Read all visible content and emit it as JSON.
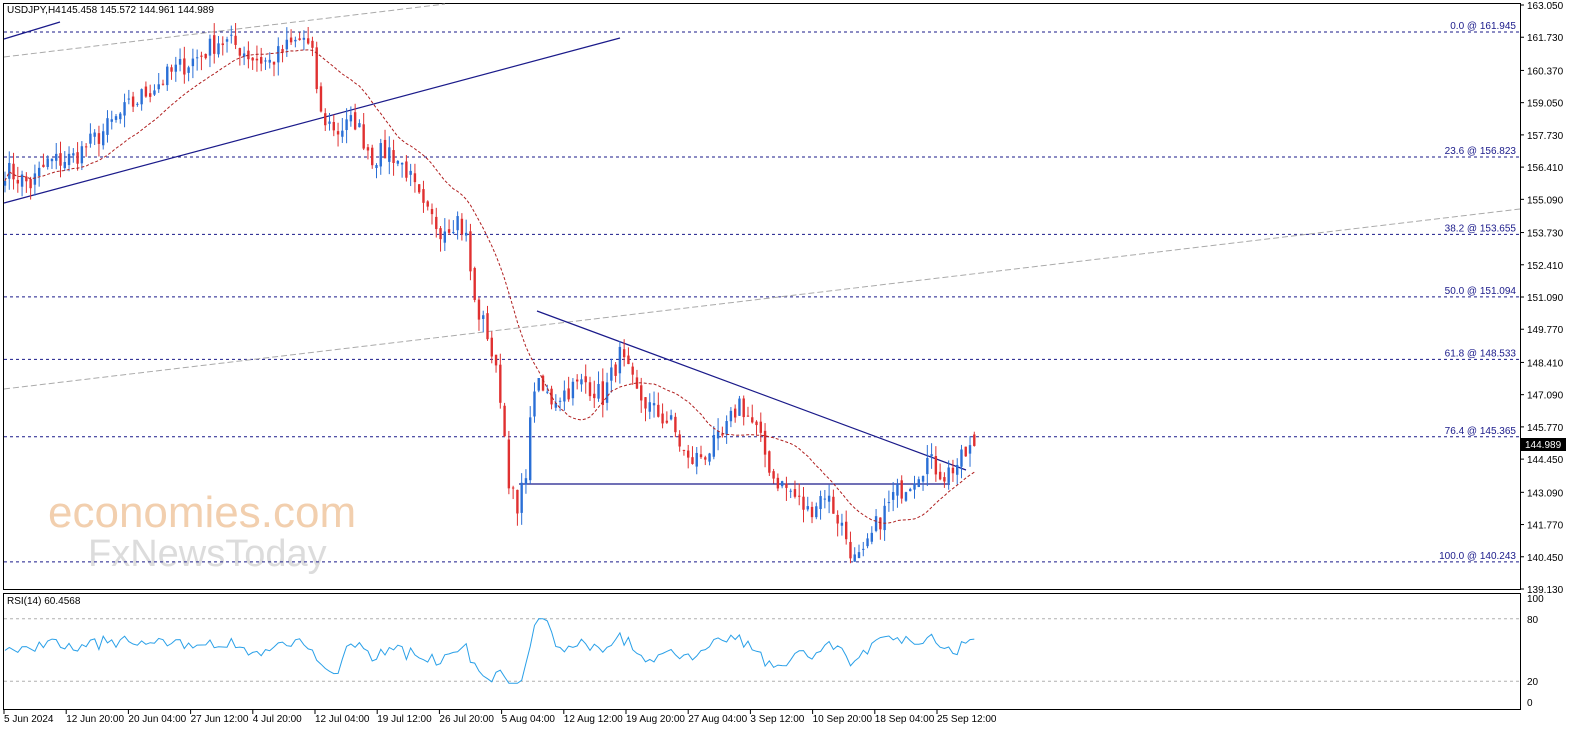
{
  "header": {
    "symbol": "USDJPY,H4",
    "ohlc": "145.458 145.572 144.961 144.989"
  },
  "price_axis": {
    "ticks": [
      "163.050",
      "161.730",
      "160.370",
      "159.050",
      "157.730",
      "156.410",
      "155.090",
      "153.730",
      "152.410",
      "151.090",
      "149.770",
      "148.410",
      "147.090",
      "145.770",
      "144.450",
      "143.090",
      "141.770",
      "140.450",
      "139.130"
    ],
    "current_price": "144.989"
  },
  "fibonacci": [
    {
      "label": "0.0 @ 161.945",
      "price": 161.945
    },
    {
      "label": "23.6 @ 156.823",
      "price": 156.823
    },
    {
      "label": "38.2 @ 153.655",
      "price": 153.655
    },
    {
      "label": "50.0 @ 151.094",
      "price": 151.094
    },
    {
      "label": "61.8 @ 148.533",
      "price": 148.533
    },
    {
      "label": "76.4 @ 145.365",
      "price": 145.365
    },
    {
      "label": "100.0 @ 140.243",
      "price": 140.243
    }
  ],
  "rsi": {
    "label": "RSI(14) 60.4568",
    "ticks": [
      "100",
      "80",
      "20",
      "0"
    ],
    "levels": [
      80,
      20
    ]
  },
  "time_axis": {
    "ticks": [
      "5 Jun 2024",
      "12 Jun 20:00",
      "20 Jun 04:00",
      "27 Jun 12:00",
      "4 Jul 20:00",
      "12 Jul 04:00",
      "19 Jul 12:00",
      "26 Jul 20:00",
      "5 Aug 04:00",
      "12 Aug 12:00",
      "19 Aug 20:00",
      "27 Aug 04:00",
      "3 Sep 12:00",
      "10 Sep 20:00",
      "18 Sep 04:00",
      "25 Sep 12:00"
    ]
  },
  "watermark": {
    "line1": "economies.com",
    "line2": "FxNewsToday"
  },
  "colors": {
    "bull": "#2a6fd6",
    "bear": "#e03030",
    "ma": "#b02020",
    "trend": "#1a1a8a",
    "rsi": "#2aa0e8",
    "grid_dash": "#1a1a8a"
  },
  "chart_data": {
    "type": "candlestick",
    "symbol": "USDJPY",
    "timeframe": "H4",
    "ylim": [
      139.13,
      163.05
    ],
    "x_labels": [
      "5 Jun 2024",
      "12 Jun 20:00",
      "20 Jun 04:00",
      "27 Jun 12:00",
      "4 Jul 20:00",
      "12 Jul 04:00",
      "19 Jul 12:00",
      "26 Jul 20:00",
      "5 Aug 04:00",
      "12 Aug 12:00",
      "19 Aug 20:00",
      "27 Aug 04:00",
      "3 Sep 12:00",
      "10 Sep 20:00",
      "18 Sep 04:00",
      "25 Sep 12:00"
    ],
    "price_path_keypoints": [
      [
        0,
        156.3
      ],
      [
        6,
        155.7
      ],
      [
        10,
        156.6
      ],
      [
        16,
        156.8
      ],
      [
        22,
        157.7
      ],
      [
        28,
        158.7
      ],
      [
        34,
        159.6
      ],
      [
        40,
        160.4
      ],
      [
        46,
        161.0
      ],
      [
        50,
        161.6
      ],
      [
        54,
        161.4
      ],
      [
        58,
        160.9
      ],
      [
        62,
        160.7
      ],
      [
        66,
        161.3
      ],
      [
        70,
        161.7
      ],
      [
        72,
        160.9
      ],
      [
        74,
        158.5
      ],
      [
        78,
        157.9
      ],
      [
        82,
        158.3
      ],
      [
        86,
        156.8
      ],
      [
        90,
        157.1
      ],
      [
        94,
        156.3
      ],
      [
        98,
        154.6
      ],
      [
        102,
        153.9
      ],
      [
        106,
        154.3
      ],
      [
        108,
        153.5
      ],
      [
        110,
        150.8
      ],
      [
        113,
        149.6
      ],
      [
        116,
        147.1
      ],
      [
        118,
        143.7
      ],
      [
        120,
        142.1
      ],
      [
        122,
        144.1
      ],
      [
        124,
        147.5
      ],
      [
        128,
        146.9
      ],
      [
        132,
        147.3
      ],
      [
        136,
        147.6
      ],
      [
        140,
        147.0
      ],
      [
        144,
        148.7
      ],
      [
        148,
        147.1
      ],
      [
        152,
        146.4
      ],
      [
        156,
        145.9
      ],
      [
        160,
        144.3
      ],
      [
        164,
        144.7
      ],
      [
        168,
        145.3
      ],
      [
        172,
        146.8
      ],
      [
        176,
        145.6
      ],
      [
        180,
        143.7
      ],
      [
        184,
        143.1
      ],
      [
        188,
        142.3
      ],
      [
        192,
        143.1
      ],
      [
        196,
        141.7
      ],
      [
        199,
        140.3
      ],
      [
        201,
        140.4
      ],
      [
        204,
        141.7
      ],
      [
        208,
        142.9
      ],
      [
        212,
        143.6
      ],
      [
        216,
        144.4
      ],
      [
        220,
        143.8
      ],
      [
        224,
        144.4
      ],
      [
        227,
        145.1
      ]
    ],
    "moving_average": {
      "style": "dashed",
      "color": "#b02020"
    },
    "rsi_14": {
      "value": 60.4568,
      "overbought": 80,
      "oversold": 20
    },
    "last": {
      "open": 145.458,
      "high": 145.572,
      "low": 144.961,
      "close": 144.989
    }
  }
}
